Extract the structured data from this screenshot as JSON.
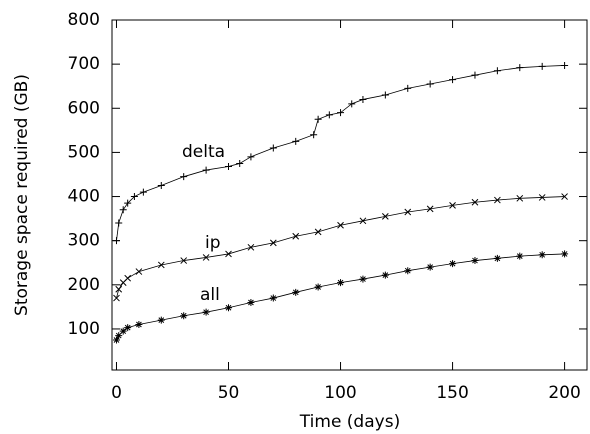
{
  "chart_data": {
    "type": "line",
    "xlabel": "Time (days)",
    "ylabel": "Storage space required (GB)",
    "xlim": [
      -2,
      210
    ],
    "ylim": [
      7,
      800
    ],
    "xticks": [
      0,
      50,
      100,
      150,
      200
    ],
    "yticks": [
      100,
      200,
      300,
      400,
      500,
      600,
      700,
      800
    ],
    "series": [
      {
        "name": "delta",
        "color": "#000000",
        "marker": "plus",
        "x": [
          0,
          1,
          3,
          5,
          8,
          12,
          20,
          30,
          40,
          50,
          55,
          60,
          70,
          80,
          88,
          90,
          95,
          100,
          105,
          110,
          120,
          130,
          140,
          150,
          160,
          170,
          180,
          190,
          200
        ],
        "values": [
          300,
          340,
          370,
          385,
          400,
          410,
          425,
          445,
          460,
          468,
          475,
          490,
          510,
          525,
          540,
          575,
          585,
          590,
          610,
          620,
          630,
          645,
          655,
          665,
          675,
          685,
          692,
          695,
          697
        ]
      },
      {
        "name": "ip",
        "color": "#000000",
        "marker": "x",
        "x": [
          0,
          1,
          3,
          5,
          10,
          20,
          30,
          40,
          50,
          60,
          70,
          80,
          90,
          100,
          110,
          120,
          130,
          140,
          150,
          160,
          170,
          180,
          190,
          200
        ],
        "values": [
          170,
          190,
          205,
          215,
          230,
          245,
          255,
          262,
          270,
          285,
          295,
          310,
          320,
          335,
          345,
          355,
          365,
          372,
          380,
          387,
          392,
          396,
          398,
          400
        ]
      },
      {
        "name": "all",
        "color": "#000000",
        "marker": "star",
        "x": [
          0,
          1,
          3,
          5,
          10,
          20,
          30,
          40,
          50,
          60,
          70,
          80,
          90,
          100,
          110,
          120,
          130,
          140,
          150,
          160,
          170,
          180,
          190,
          200
        ],
        "values": [
          75,
          85,
          95,
          103,
          110,
          120,
          130,
          138,
          148,
          160,
          170,
          183,
          195,
          205,
          213,
          222,
          232,
          240,
          248,
          255,
          260,
          265,
          268,
          270
        ]
      }
    ]
  }
}
